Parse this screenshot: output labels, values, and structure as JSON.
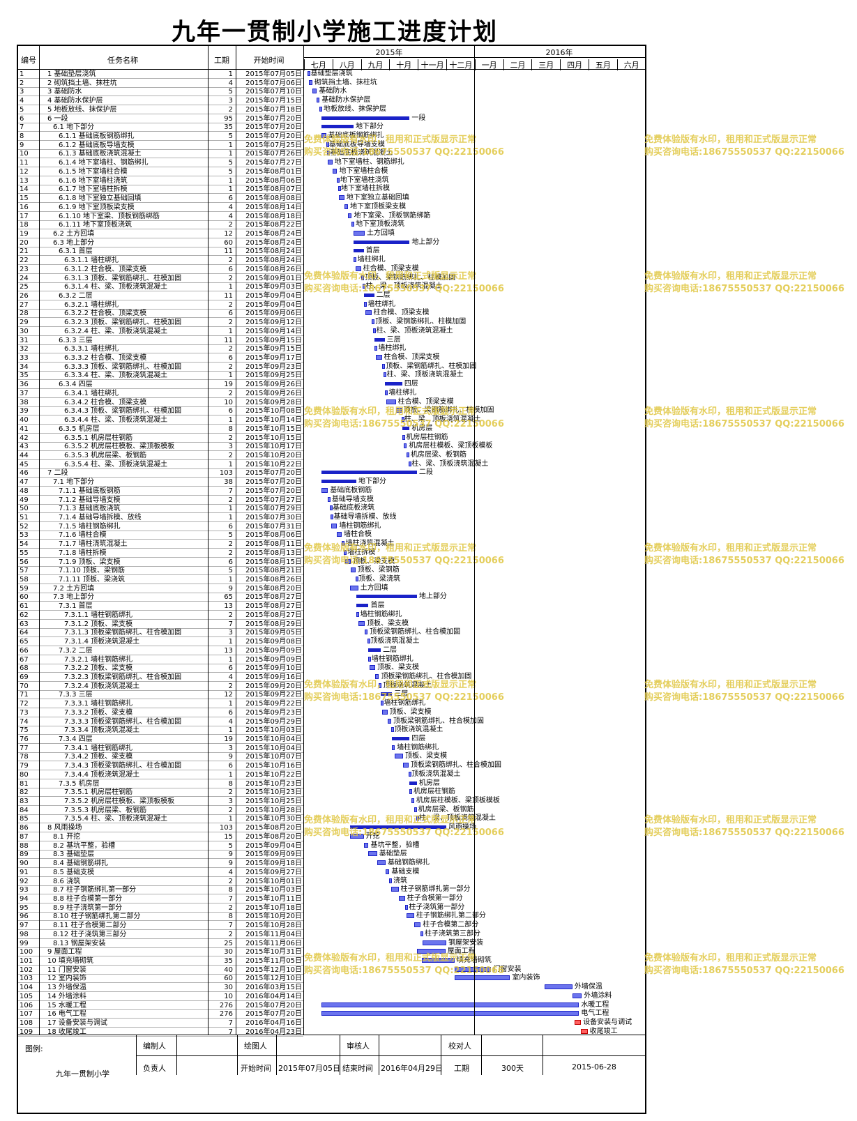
{
  "title": "九年一贯制小学施工进度计划",
  "headers": {
    "id": "编号",
    "name": "任务名称",
    "duration": "工期",
    "start": "开始时间"
  },
  "years": [
    "2015年",
    "2016年"
  ],
  "months": [
    "七月",
    "八月",
    "九月",
    "十月",
    "十一月",
    "十二月",
    "一月",
    "二月",
    "三月",
    "四月",
    "五月",
    "六月"
  ],
  "tasks": [
    {
      "id": "1",
      "name": "1 基础垫层浇筑",
      "dur": "1",
      "start": "2015年07月05日",
      "label": "基础垫层浇筑"
    },
    {
      "id": "2",
      "name": "2 砌筑挡土墙、抹柱坑",
      "dur": "4",
      "start": "2015年07月06日",
      "label": "砌筑挡土墙、抹柱坑"
    },
    {
      "id": "3",
      "name": "3 基础防水",
      "dur": "5",
      "start": "2015年07月10日",
      "label": "基础防水"
    },
    {
      "id": "4",
      "name": "4 基础防水保护层",
      "dur": "3",
      "start": "2015年07月15日",
      "label": "基础防水保护层"
    },
    {
      "id": "5",
      "name": "5 地板放线、抹保护层",
      "dur": "2",
      "start": "2015年07月18日",
      "label": "地板放线、抹保护层"
    },
    {
      "id": "6",
      "name": "6 一段",
      "dur": "95",
      "start": "2015年07月20日",
      "label": "一段",
      "sum": true
    },
    {
      "id": "7",
      "name": "6.1 地下部分",
      "dur": "35",
      "start": "2015年07月20日",
      "label": "地下部分",
      "sum": true
    },
    {
      "id": "8",
      "name": "6.1.1 基础底板钢筋绑扎",
      "dur": "5",
      "start": "2015年07月20日",
      "label": "基础底板钢筋绑扎"
    },
    {
      "id": "9",
      "name": "6.1.2 基础底板导墙支模",
      "dur": "1",
      "start": "2015年07月25日",
      "label": "基础底板导墙支模"
    },
    {
      "id": "10",
      "name": "6.1.3 基础底板浇筑混凝土",
      "dur": "1",
      "start": "2015年07月26日",
      "label": "基础底板浇筑混凝土"
    },
    {
      "id": "11",
      "name": "6.1.4 地下室墙柱、钢筋绑扎",
      "dur": "5",
      "start": "2015年07月27日",
      "label": "地下室墙柱、钢筋绑扎"
    },
    {
      "id": "12",
      "name": "6.1.5 地下室墙柱合模",
      "dur": "5",
      "start": "2015年08月01日",
      "label": "地下室墙柱合模"
    },
    {
      "id": "13",
      "name": "6.1.6 地下室墙柱浇筑",
      "dur": "1",
      "start": "2015年08月06日",
      "label": "地下室墙柱浇筑"
    },
    {
      "id": "14",
      "name": "6.1.7 地下室墙柱拆模",
      "dur": "1",
      "start": "2015年08月07日",
      "label": "地下室墙柱拆模"
    },
    {
      "id": "15",
      "name": "6.1.8 地下室独立基础回填",
      "dur": "6",
      "start": "2015年08月08日",
      "label": "地下室独立基础回填"
    },
    {
      "id": "16",
      "name": "6.1.9 地下室顶板梁支模",
      "dur": "4",
      "start": "2015年08月14日",
      "label": "地下室顶板梁支模"
    },
    {
      "id": "17",
      "name": "6.1.10 地下室梁、顶板钢筋绑筋",
      "dur": "4",
      "start": "2015年08月18日",
      "label": "地下室梁、顶板钢筋绑筋"
    },
    {
      "id": "18",
      "name": "6.1.11 地下室顶板浇筑",
      "dur": "2",
      "start": "2015年08月22日",
      "label": "地下室顶板浇筑"
    },
    {
      "id": "19",
      "name": "6.2 土方回填",
      "dur": "12",
      "start": "2015年08月24日",
      "label": "土方回填"
    },
    {
      "id": "20",
      "name": "6.3 地上部分",
      "dur": "60",
      "start": "2015年08月24日",
      "label": "地上部分",
      "sum": true
    },
    {
      "id": "21",
      "name": "6.3.1 首层",
      "dur": "11",
      "start": "2015年08月24日",
      "label": "首层",
      "sum": true
    },
    {
      "id": "22",
      "name": "6.3.1.1 墙柱绑扎",
      "dur": "2",
      "start": "2015年08月24日",
      "label": "墙柱绑扎"
    },
    {
      "id": "23",
      "name": "6.3.1.2 柱合模、顶梁支模",
      "dur": "6",
      "start": "2015年08月26日",
      "label": "柱合模、顶梁支模"
    },
    {
      "id": "24",
      "name": "6.3.1.3 顶板、梁钢筋绑扎、柱模加固",
      "dur": "2",
      "start": "2015年09月01日",
      "label": "顶板、梁钢筋绑扎、柱模加固"
    },
    {
      "id": "25",
      "name": "6.3.1.4 柱、梁、顶板浇筑混凝土",
      "dur": "1",
      "start": "2015年09月03日",
      "label": "柱、梁、顶板浇筑混凝土"
    },
    {
      "id": "26",
      "name": "6.3.2 二层",
      "dur": "11",
      "start": "2015年09月04日",
      "label": "二层",
      "sum": true
    },
    {
      "id": "27",
      "name": "6.3.2.1 墙柱绑扎",
      "dur": "2",
      "start": "2015年09月04日",
      "label": "墙柱绑扎"
    },
    {
      "id": "28",
      "name": "6.3.2.2 柱合模、顶梁支模",
      "dur": "6",
      "start": "2015年09月06日",
      "label": "柱合模、顶梁支模"
    },
    {
      "id": "29",
      "name": "6.3.2.3 顶板、梁钢筋绑扎、柱模加固",
      "dur": "2",
      "start": "2015年09月12日",
      "label": "顶板、梁钢筋绑扎、柱模加固"
    },
    {
      "id": "30",
      "name": "6.3.2.4 柱、梁、顶板浇筑混凝土",
      "dur": "1",
      "start": "2015年09月14日",
      "label": "柱、梁、顶板浇筑混凝土"
    },
    {
      "id": "31",
      "name": "6.3.3 三层",
      "dur": "11",
      "start": "2015年09月15日",
      "label": "三层",
      "sum": true
    },
    {
      "id": "32",
      "name": "6.3.3.1 墙柱绑扎",
      "dur": "2",
      "start": "2015年09月15日",
      "label": "墙柱绑扎"
    },
    {
      "id": "33",
      "name": "6.3.3.2 柱合模、顶梁支模",
      "dur": "6",
      "start": "2015年09月17日",
      "label": "柱合模、顶梁支模"
    },
    {
      "id": "34",
      "name": "6.3.3.3 顶板、梁钢筋绑扎、柱模加固",
      "dur": "2",
      "start": "2015年09月23日",
      "label": "顶板、梁钢筋绑扎、柱模加固"
    },
    {
      "id": "35",
      "name": "6.3.3.4 柱、梁、顶板浇筑混凝土",
      "dur": "1",
      "start": "2015年09月25日",
      "label": "柱、梁、顶板浇筑混凝土"
    },
    {
      "id": "36",
      "name": "6.3.4 四层",
      "dur": "19",
      "start": "2015年09月26日",
      "label": "四层",
      "sum": true
    },
    {
      "id": "37",
      "name": "6.3.4.1 墙柱绑扎",
      "dur": "2",
      "start": "2015年09月26日",
      "label": "墙柱绑扎"
    },
    {
      "id": "38",
      "name": "6.3.4.2 柱合模、顶梁支模",
      "dur": "10",
      "start": "2015年09月28日",
      "label": "柱合模、顶梁支模"
    },
    {
      "id": "39",
      "name": "6.3.4.3 顶板、梁钢筋绑扎、柱模加固",
      "dur": "6",
      "start": "2015年10月08日",
      "label": "顶板、梁钢筋绑扎、柱模加固"
    },
    {
      "id": "40",
      "name": "6.3.4.4 柱、梁、顶板浇筑混凝土",
      "dur": "1",
      "start": "2015年10月14日",
      "label": "柱、梁、顶板浇筑混凝土"
    },
    {
      "id": "41",
      "name": "6.3.5 机房层",
      "dur": "8",
      "start": "2015年10月15日",
      "label": "机房层",
      "sum": true
    },
    {
      "id": "42",
      "name": "6.3.5.1 机房层柱钢筋",
      "dur": "2",
      "start": "2015年10月15日",
      "label": "机房层柱钢筋"
    },
    {
      "id": "43",
      "name": "6.3.5.2 机房层柱模板、梁顶板模板",
      "dur": "3",
      "start": "2015年10月17日",
      "label": "机房层柱模板、梁顶板模板"
    },
    {
      "id": "44",
      "name": "6.3.5.3 机房层梁、板钢筋",
      "dur": "2",
      "start": "2015年10月20日",
      "label": "机房层梁、板钢筋"
    },
    {
      "id": "45",
      "name": "6.3.5.4 柱、梁、顶板浇筑混凝土",
      "dur": "1",
      "start": "2015年10月22日",
      "label": "柱、梁、顶板浇筑混凝土"
    },
    {
      "id": "46",
      "name": "7 二段",
      "dur": "103",
      "start": "2015年07月20日",
      "label": "二段",
      "sum": true
    },
    {
      "id": "47",
      "name": "7.1 地下部分",
      "dur": "38",
      "start": "2015年07月20日",
      "label": "地下部分",
      "sum": true
    },
    {
      "id": "48",
      "name": "7.1.1 基础底板钢筋",
      "dur": "7",
      "start": "2015年07月20日",
      "label": "基础底板钢筋"
    },
    {
      "id": "49",
      "name": "7.1.2 基础导墙支模",
      "dur": "2",
      "start": "2015年07月27日",
      "label": "基础导墙支模"
    },
    {
      "id": "50",
      "name": "7.1.3 基础底板浇筑",
      "dur": "1",
      "start": "2015年07月29日",
      "label": "基础底板浇筑"
    },
    {
      "id": "51",
      "name": "7.1.4 基础导墙拆模、放线",
      "dur": "1",
      "start": "2015年07月30日",
      "label": "基础导墙拆模、放线"
    },
    {
      "id": "52",
      "name": "7.1.5 墙柱钢筋绑扎",
      "dur": "6",
      "start": "2015年07月31日",
      "label": "墙柱钢筋绑扎"
    },
    {
      "id": "53",
      "name": "7.1.6 墙柱合模",
      "dur": "5",
      "start": "2015年08月06日",
      "label": "墙柱合模"
    },
    {
      "id": "54",
      "name": "7.1.7 墙柱浇筑混凝土",
      "dur": "2",
      "start": "2015年08月11日",
      "label": "墙柱浇筑混凝土"
    },
    {
      "id": "55",
      "name": "7.1.8 墙柱拆模",
      "dur": "2",
      "start": "2015年08月13日",
      "label": "墙柱拆模"
    },
    {
      "id": "56",
      "name": "7.1.9 顶板、梁支模",
      "dur": "6",
      "start": "2015年08月15日",
      "label": "顶板、梁支模"
    },
    {
      "id": "57",
      "name": "7.1.10 顶板、梁钢筋",
      "dur": "5",
      "start": "2015年08月21日",
      "label": "顶板、梁钢筋"
    },
    {
      "id": "58",
      "name": "7.1.11 顶板、梁浇筑",
      "dur": "1",
      "start": "2015年08月26日",
      "label": "顶板、梁浇筑"
    },
    {
      "id": "59",
      "name": "7.2 土方回填",
      "dur": "9",
      "start": "2015年08月20日",
      "label": "土方回填"
    },
    {
      "id": "60",
      "name": "7.3 地上部分",
      "dur": "65",
      "start": "2015年08月27日",
      "label": "地上部分",
      "sum": true
    },
    {
      "id": "61",
      "name": "7.3.1 首层",
      "dur": "13",
      "start": "2015年08月27日",
      "label": "首层",
      "sum": true
    },
    {
      "id": "62",
      "name": "7.3.1.1 墙柱钢筋绑扎",
      "dur": "2",
      "start": "2015年08月27日",
      "label": "墙柱钢筋绑扎"
    },
    {
      "id": "63",
      "name": "7.3.1.2 顶板、梁支模",
      "dur": "7",
      "start": "2015年08月29日",
      "label": "顶板、梁支模"
    },
    {
      "id": "64",
      "name": "7.3.1.3 顶板梁钢筋绑扎、柱合模加固",
      "dur": "3",
      "start": "2015年09月05日",
      "label": "顶板梁钢筋绑扎、柱合模加固"
    },
    {
      "id": "65",
      "name": "7.3.1.4 顶板浇筑混凝土",
      "dur": "1",
      "start": "2015年09月08日",
      "label": "顶板浇筑混凝土"
    },
    {
      "id": "66",
      "name": "7.3.2 二层",
      "dur": "13",
      "start": "2015年09月09日",
      "label": "二层",
      "sum": true
    },
    {
      "id": "67",
      "name": "7.3.2.1 墙柱钢筋绑扎",
      "dur": "1",
      "start": "2015年09月09日",
      "label": "墙柱钢筋绑扎"
    },
    {
      "id": "68",
      "name": "7.3.2.2 顶板、梁支模",
      "dur": "6",
      "start": "2015年09月10日",
      "label": "顶板、梁支模"
    },
    {
      "id": "69",
      "name": "7.3.2.3 顶板梁钢筋绑扎、柱合模加固",
      "dur": "4",
      "start": "2015年09月16日",
      "label": "顶板梁钢筋绑扎、柱合模加固"
    },
    {
      "id": "70",
      "name": "7.3.2.4 顶板浇筑混凝土",
      "dur": "2",
      "start": "2015年09月20日",
      "label": "顶板浇筑混凝土"
    },
    {
      "id": "71",
      "name": "7.3.3 三层",
      "dur": "12",
      "start": "2015年09月22日",
      "label": "三层",
      "sum": true
    },
    {
      "id": "72",
      "name": "7.3.3.1 墙柱钢筋绑扎",
      "dur": "1",
      "start": "2015年09月22日",
      "label": "墙柱钢筋绑扎"
    },
    {
      "id": "73",
      "name": "7.3.3.2 顶板、梁支模",
      "dur": "6",
      "start": "2015年09月23日",
      "label": "顶板、梁支模"
    },
    {
      "id": "74",
      "name": "7.3.3.3 顶板梁钢筋绑扎、柱合模加固",
      "dur": "4",
      "start": "2015年09月29日",
      "label": "顶板梁钢筋绑扎、柱合模加固"
    },
    {
      "id": "75",
      "name": "7.3.3.4 顶板浇筑混凝土",
      "dur": "1",
      "start": "2015年10月03日",
      "label": "顶板浇筑混凝土"
    },
    {
      "id": "76",
      "name": "7.3.4 四层",
      "dur": "19",
      "start": "2015年10月04日",
      "label": "四层",
      "sum": true
    },
    {
      "id": "77",
      "name": "7.3.4.1 墙柱钢筋绑扎",
      "dur": "3",
      "start": "2015年10月04日",
      "label": "墙柱钢筋绑扎"
    },
    {
      "id": "78",
      "name": "7.3.4.2 顶板、梁支模",
      "dur": "9",
      "start": "2015年10月07日",
      "label": "顶板、梁支模"
    },
    {
      "id": "79",
      "name": "7.3.4.3 顶板梁钢筋绑扎、柱合模加固",
      "dur": "6",
      "start": "2015年10月16日",
      "label": "顶板梁钢筋绑扎、柱合模加固"
    },
    {
      "id": "80",
      "name": "7.3.4.4 顶板浇筑混凝土",
      "dur": "1",
      "start": "2015年10月22日",
      "label": "顶板浇筑混凝土"
    },
    {
      "id": "81",
      "name": "7.3.5 机房层",
      "dur": "8",
      "start": "2015年10月23日",
      "label": "机房层",
      "sum": true
    },
    {
      "id": "82",
      "name": "7.3.5.1 机房层柱钢筋",
      "dur": "2",
      "start": "2015年10月23日",
      "label": "机房层柱钢筋"
    },
    {
      "id": "83",
      "name": "7.3.5.2 机房层柱模板、梁顶板模板",
      "dur": "3",
      "start": "2015年10月25日",
      "label": "机房层柱模板、梁顶板模板"
    },
    {
      "id": "84",
      "name": "7.3.5.3 机房层梁、板钢筋",
      "dur": "2",
      "start": "2015年10月28日",
      "label": "机房层梁、板钢筋"
    },
    {
      "id": "85",
      "name": "7.3.5.4 柱、梁、顶板浇筑混凝土",
      "dur": "1",
      "start": "2015年10月30日",
      "label": "柱、梁、顶板浇筑混凝土"
    },
    {
      "id": "86",
      "name": "8 风雨操场",
      "dur": "103",
      "start": "2015年08月20日",
      "label": "风雨操场",
      "sum": true
    },
    {
      "id": "87",
      "name": "8.1 开挖",
      "dur": "15",
      "start": "2015年08月20日",
      "label": "开挖"
    },
    {
      "id": "88",
      "name": "8.2 基坑平整，验槽",
      "dur": "5",
      "start": "2015年09月04日",
      "label": "基坑平整，验槽"
    },
    {
      "id": "89",
      "name": "8.3 基础垫层",
      "dur": "9",
      "start": "2015年09月09日",
      "label": "基础垫层"
    },
    {
      "id": "90",
      "name": "8.4 基础钢筋绑扎",
      "dur": "9",
      "start": "2015年09月18日",
      "label": "基础钢筋绑扎"
    },
    {
      "id": "91",
      "name": "8.5 基础支模",
      "dur": "4",
      "start": "2015年09月27日",
      "label": "基础支模"
    },
    {
      "id": "92",
      "name": "8.6 浇筑",
      "dur": "2",
      "start": "2015年10月01日",
      "label": "浇筑"
    },
    {
      "id": "93",
      "name": "8.7 柱子钢筋绑扎第一部分",
      "dur": "8",
      "start": "2015年10月03日",
      "label": "柱子钢筋绑扎第一部分"
    },
    {
      "id": "94",
      "name": "8.8 柱子合模第一部分",
      "dur": "7",
      "start": "2015年10月11日",
      "label": "柱子合模第一部分"
    },
    {
      "id": "95",
      "name": "8.9 柱子浇筑第一部分",
      "dur": "2",
      "start": "2015年10月18日",
      "label": "柱子浇筑第一部分"
    },
    {
      "id": "96",
      "name": "8.10 柱子钢筋绑扎第二部分",
      "dur": "8",
      "start": "2015年10月20日",
      "label": "柱子钢筋绑扎第二部分"
    },
    {
      "id": "97",
      "name": "8.11 柱子合模第二部分",
      "dur": "7",
      "start": "2015年10月28日",
      "label": "柱子合模第二部分"
    },
    {
      "id": "98",
      "name": "8.12 柱子浇筑第三部分",
      "dur": "2",
      "start": "2015年11月04日",
      "label": "柱子浇筑第三部分"
    },
    {
      "id": "99",
      "name": "8.13 钢屋架安装",
      "dur": "25",
      "start": "2015年11月06日",
      "label": "钢屋架安装"
    },
    {
      "id": "100",
      "name": "9 屋面工程",
      "dur": "30",
      "start": "2015年10月31日",
      "label": "屋面工程"
    },
    {
      "id": "101",
      "name": "10 填充墙砌筑",
      "dur": "35",
      "start": "2015年11月05日",
      "label": "填充墙砌筑"
    },
    {
      "id": "102",
      "name": "11 门窗安装",
      "dur": "40",
      "start": "2015年12月10日",
      "label": "门窗安装"
    },
    {
      "id": "103",
      "name": "12 室内装饰",
      "dur": "60",
      "start": "2015年12月10日",
      "label": "室内装饰"
    },
    {
      "id": "104",
      "name": "13 外墙保温",
      "dur": "30",
      "start": "2016年03月15日",
      "label": "外墙保温"
    },
    {
      "id": "105",
      "name": "14 外墙涂料",
      "dur": "10",
      "start": "2016年04月14日",
      "label": "外墙涂料"
    },
    {
      "id": "106",
      "name": "15 水暖工程",
      "dur": "276",
      "start": "2015年07月20日",
      "label": "水暖工程"
    },
    {
      "id": "107",
      "name": "16 电气工程",
      "dur": "276",
      "start": "2015年07月20日",
      "label": "电气工程"
    },
    {
      "id": "108",
      "name": "17 设备安装与调试",
      "dur": "7",
      "start": "2016年04月16日",
      "label": "设备安装与调试",
      "red": true
    },
    {
      "id": "109",
      "name": "18 收尾竣工",
      "dur": "7",
      "start": "2016年04月23日",
      "label": "收尾竣工",
      "red": true
    }
  ],
  "footer": {
    "legend": "图例:",
    "project": "九年一贯制小学",
    "compiler": "编制人",
    "drawer": "绘图人",
    "reviewer": "审核人",
    "checker": "校对人",
    "leader": "负责人",
    "start_label": "开始时间",
    "start_value": "2015年07月05日",
    "end_label": "结束时间",
    "end_value": "2016年04月29日",
    "duration_label": "工期",
    "duration_value": "300天",
    "date": "2015-06-28"
  },
  "watermark": {
    "line1": "免费体验版有水印，租用和正式版显示正常",
    "line2": "购买咨询电话:18675550537 QQ:22150066"
  },
  "colors": {
    "bar": "#6b74ee",
    "summary": "#1a22c8",
    "milestone_red": "#ff6060",
    "watermark": "#e0c640"
  }
}
